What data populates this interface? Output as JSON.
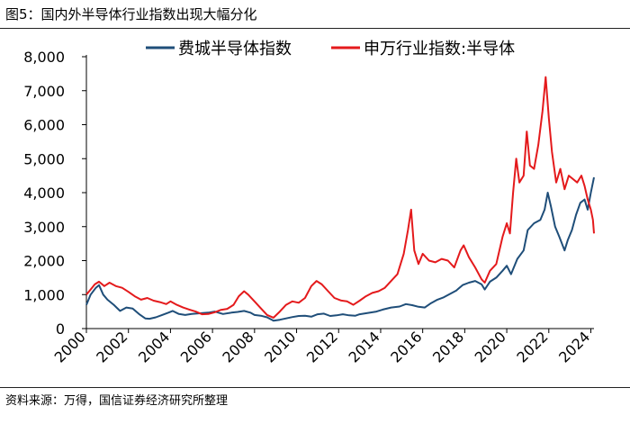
{
  "figure": {
    "title": "图5：国内外半导体行业指数出现大幅分化",
    "source": "资料来源：万得，国信证券经济研究所整理"
  },
  "chart_data": {
    "type": "line",
    "title": "国内外半导体行业指数出现大幅分化",
    "xlabel": "",
    "ylabel": "",
    "xlim": [
      2000,
      2024.15
    ],
    "ylim": [
      0,
      8000
    ],
    "x_ticks": [
      2000,
      2002,
      2004,
      2006,
      2008,
      2010,
      2012,
      2014,
      2016,
      2018,
      2020,
      2022,
      2024
    ],
    "x_tick_labels": [
      "2000",
      "2002",
      "2004",
      "2006",
      "2008",
      "2010",
      "2012",
      "2014",
      "2016",
      "2018",
      "2020",
      "2022",
      "2024"
    ],
    "y_ticks": [
      0,
      1000,
      2000,
      3000,
      4000,
      5000,
      6000,
      7000,
      8000
    ],
    "y_tick_labels": [
      "0",
      "1,000",
      "2,000",
      "3,000",
      "4,000",
      "5,000",
      "6,000",
      "7,000",
      "8,000"
    ],
    "legend": {
      "position": "top",
      "entries": [
        "费城半导体指数",
        "申万行业指数:半导体"
      ]
    },
    "grid": false,
    "series": [
      {
        "name": "费城半导体指数",
        "color": "#1f4e79",
        "points": [
          [
            2000.0,
            700
          ],
          [
            2000.2,
            1000
          ],
          [
            2000.45,
            1200
          ],
          [
            2000.6,
            1280
          ],
          [
            2000.8,
            1000
          ],
          [
            2001.0,
            850
          ],
          [
            2001.3,
            700
          ],
          [
            2001.6,
            520
          ],
          [
            2001.9,
            620
          ],
          [
            2002.2,
            590
          ],
          [
            2002.5,
            430
          ],
          [
            2002.8,
            300
          ],
          [
            2003.0,
            290
          ],
          [
            2003.3,
            330
          ],
          [
            2003.6,
            400
          ],
          [
            2003.9,
            470
          ],
          [
            2004.1,
            520
          ],
          [
            2004.4,
            430
          ],
          [
            2004.7,
            400
          ],
          [
            2005.0,
            430
          ],
          [
            2005.4,
            450
          ],
          [
            2005.8,
            470
          ],
          [
            2006.1,
            500
          ],
          [
            2006.5,
            430
          ],
          [
            2006.9,
            470
          ],
          [
            2007.2,
            490
          ],
          [
            2007.5,
            520
          ],
          [
            2007.8,
            470
          ],
          [
            2008.0,
            400
          ],
          [
            2008.3,
            380
          ],
          [
            2008.6,
            330
          ],
          [
            2008.9,
            230
          ],
          [
            2009.2,
            260
          ],
          [
            2009.5,
            300
          ],
          [
            2009.8,
            340
          ],
          [
            2010.1,
            370
          ],
          [
            2010.4,
            380
          ],
          [
            2010.7,
            350
          ],
          [
            2011.0,
            420
          ],
          [
            2011.3,
            440
          ],
          [
            2011.6,
            370
          ],
          [
            2011.9,
            390
          ],
          [
            2012.2,
            420
          ],
          [
            2012.5,
            390
          ],
          [
            2012.8,
            380
          ],
          [
            2013.0,
            420
          ],
          [
            2013.4,
            460
          ],
          [
            2013.8,
            500
          ],
          [
            2014.1,
            560
          ],
          [
            2014.5,
            620
          ],
          [
            2014.9,
            650
          ],
          [
            2015.2,
            720
          ],
          [
            2015.5,
            690
          ],
          [
            2015.8,
            640
          ],
          [
            2016.1,
            620
          ],
          [
            2016.4,
            750
          ],
          [
            2016.7,
            850
          ],
          [
            2017.0,
            920
          ],
          [
            2017.3,
            1020
          ],
          [
            2017.6,
            1120
          ],
          [
            2017.9,
            1280
          ],
          [
            2018.2,
            1350
          ],
          [
            2018.5,
            1400
          ],
          [
            2018.8,
            1300
          ],
          [
            2018.95,
            1150
          ],
          [
            2019.2,
            1380
          ],
          [
            2019.5,
            1500
          ],
          [
            2019.8,
            1700
          ],
          [
            2020.0,
            1850
          ],
          [
            2020.2,
            1600
          ],
          [
            2020.5,
            2050
          ],
          [
            2020.8,
            2300
          ],
          [
            2021.0,
            2900
          ],
          [
            2021.3,
            3100
          ],
          [
            2021.6,
            3200
          ],
          [
            2021.8,
            3500
          ],
          [
            2021.95,
            4000
          ],
          [
            2022.1,
            3600
          ],
          [
            2022.3,
            3000
          ],
          [
            2022.5,
            2700
          ],
          [
            2022.75,
            2300
          ],
          [
            2022.9,
            2600
          ],
          [
            2023.1,
            2900
          ],
          [
            2023.3,
            3350
          ],
          [
            2023.5,
            3700
          ],
          [
            2023.7,
            3800
          ],
          [
            2023.85,
            3500
          ],
          [
            2024.0,
            4000
          ],
          [
            2024.15,
            4450
          ]
        ]
      },
      {
        "name": "申万行业指数:半导体",
        "color": "#e41a1c",
        "points": [
          [
            2000.0,
            1000
          ],
          [
            2000.2,
            1150
          ],
          [
            2000.4,
            1300
          ],
          [
            2000.6,
            1380
          ],
          [
            2000.85,
            1250
          ],
          [
            2001.1,
            1350
          ],
          [
            2001.4,
            1250
          ],
          [
            2001.7,
            1200
          ],
          [
            2002.0,
            1080
          ],
          [
            2002.3,
            950
          ],
          [
            2002.6,
            850
          ],
          [
            2002.9,
            900
          ],
          [
            2003.2,
            820
          ],
          [
            2003.5,
            780
          ],
          [
            2003.8,
            720
          ],
          [
            2004.0,
            800
          ],
          [
            2004.3,
            700
          ],
          [
            2004.6,
            620
          ],
          [
            2004.9,
            560
          ],
          [
            2005.2,
            500
          ],
          [
            2005.5,
            420
          ],
          [
            2005.8,
            430
          ],
          [
            2006.1,
            480
          ],
          [
            2006.4,
            550
          ],
          [
            2006.7,
            580
          ],
          [
            2007.0,
            700
          ],
          [
            2007.25,
            950
          ],
          [
            2007.5,
            1100
          ],
          [
            2007.7,
            1000
          ],
          [
            2008.0,
            800
          ],
          [
            2008.3,
            600
          ],
          [
            2008.6,
            400
          ],
          [
            2008.9,
            320
          ],
          [
            2009.2,
            500
          ],
          [
            2009.5,
            700
          ],
          [
            2009.8,
            800
          ],
          [
            2010.1,
            760
          ],
          [
            2010.4,
            900
          ],
          [
            2010.7,
            1250
          ],
          [
            2010.95,
            1400
          ],
          [
            2011.2,
            1300
          ],
          [
            2011.5,
            1100
          ],
          [
            2011.8,
            900
          ],
          [
            2012.1,
            830
          ],
          [
            2012.4,
            800
          ],
          [
            2012.7,
            700
          ],
          [
            2013.0,
            820
          ],
          [
            2013.3,
            950
          ],
          [
            2013.6,
            1050
          ],
          [
            2013.9,
            1100
          ],
          [
            2014.2,
            1200
          ],
          [
            2014.5,
            1400
          ],
          [
            2014.8,
            1600
          ],
          [
            2015.1,
            2200
          ],
          [
            2015.3,
            2900
          ],
          [
            2015.45,
            3500
          ],
          [
            2015.6,
            2300
          ],
          [
            2015.8,
            1900
          ],
          [
            2016.0,
            2200
          ],
          [
            2016.3,
            2000
          ],
          [
            2016.6,
            1950
          ],
          [
            2016.9,
            2050
          ],
          [
            2017.2,
            2000
          ],
          [
            2017.5,
            1800
          ],
          [
            2017.8,
            2300
          ],
          [
            2017.95,
            2450
          ],
          [
            2018.2,
            2100
          ],
          [
            2018.5,
            1800
          ],
          [
            2018.8,
            1450
          ],
          [
            2018.95,
            1350
          ],
          [
            2019.2,
            1700
          ],
          [
            2019.5,
            1900
          ],
          [
            2019.8,
            2700
          ],
          [
            2020.0,
            3100
          ],
          [
            2020.15,
            2800
          ],
          [
            2020.3,
            4000
          ],
          [
            2020.45,
            5000
          ],
          [
            2020.6,
            4300
          ],
          [
            2020.8,
            4500
          ],
          [
            2020.95,
            5800
          ],
          [
            2021.1,
            4800
          ],
          [
            2021.3,
            4700
          ],
          [
            2021.5,
            5400
          ],
          [
            2021.7,
            6400
          ],
          [
            2021.85,
            7400
          ],
          [
            2022.0,
            6200
          ],
          [
            2022.15,
            5200
          ],
          [
            2022.35,
            4300
          ],
          [
            2022.55,
            4700
          ],
          [
            2022.75,
            4100
          ],
          [
            2022.95,
            4500
          ],
          [
            2023.15,
            4400
          ],
          [
            2023.35,
            4300
          ],
          [
            2023.55,
            4500
          ],
          [
            2023.7,
            4200
          ],
          [
            2023.85,
            3800
          ],
          [
            2024.0,
            3500
          ],
          [
            2024.1,
            3200
          ],
          [
            2024.15,
            2800
          ]
        ]
      }
    ]
  }
}
